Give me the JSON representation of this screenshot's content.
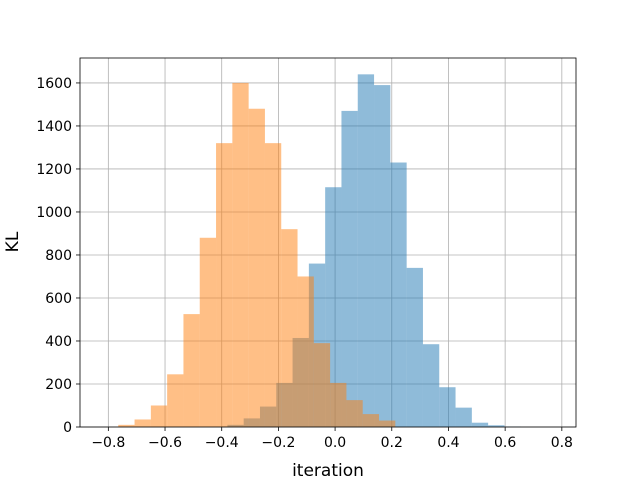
{
  "chart_data": {
    "type": "histogram",
    "xlabel": "iteration",
    "ylabel": "KL",
    "xlim": [
      -0.9,
      0.85
    ],
    "ylim": [
      0,
      1716
    ],
    "xticks": [
      {
        "value": -0.8,
        "label": "−0.8"
      },
      {
        "value": -0.6,
        "label": "−0.6"
      },
      {
        "value": -0.4,
        "label": "−0.4"
      },
      {
        "value": -0.2,
        "label": "−0.2"
      },
      {
        "value": 0,
        "label": "0.0"
      },
      {
        "value": 0.2,
        "label": "0.2"
      },
      {
        "value": 0.4,
        "label": "0.4"
      },
      {
        "value": 0.6,
        "label": "0.6"
      },
      {
        "value": 0.8,
        "label": "0.8"
      }
    ],
    "yticks": [
      0,
      200,
      400,
      600,
      800,
      1000,
      1200,
      1400,
      1600
    ],
    "grid": true,
    "series": [
      {
        "color": "#1f77b4",
        "bins": [
          -0.38,
          -0.3225,
          -0.265,
          -0.2075,
          -0.15,
          -0.0925,
          -0.035,
          0.0225,
          0.08,
          0.1375,
          0.195,
          0.2525,
          0.31,
          0.3675,
          0.425,
          0.4825,
          0.54,
          0.5975,
          0.655
        ],
        "values": [
          10,
          40,
          95,
          205,
          414,
          760,
          1115,
          1470,
          1640,
          1590,
          1230,
          740,
          385,
          185,
          90,
          20,
          8,
          2
        ]
      },
      {
        "color": "#ff7f0e",
        "bins": [
          -0.765,
          -0.7075,
          -0.65,
          -0.5925,
          -0.535,
          -0.4775,
          -0.42,
          -0.3625,
          -0.305,
          -0.2475,
          -0.19,
          -0.1325,
          -0.075,
          -0.0175,
          0.04,
          0.0975,
          0.155,
          0.2125
        ],
        "values": [
          10,
          35,
          100,
          245,
          525,
          880,
          1320,
          1600,
          1480,
          1320,
          920,
          700,
          390,
          205,
          125,
          60,
          30
        ]
      }
    ]
  }
}
